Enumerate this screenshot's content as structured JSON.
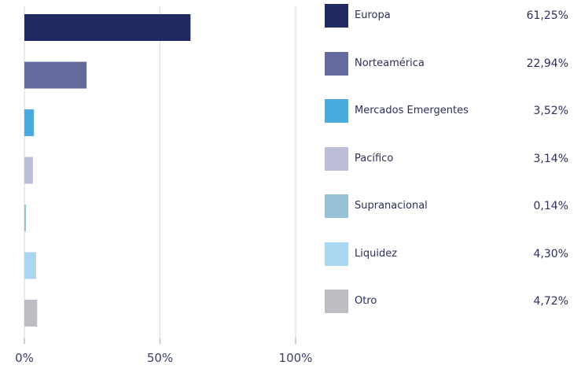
{
  "chart_data": {
    "type": "bar",
    "orientation": "horizontal",
    "categories": [
      "Europa",
      "Norteamérica",
      "Mercados Emergentes",
      "Pacífico",
      "Supranacional",
      "Liquidez",
      "Otro"
    ],
    "values": [
      61.25,
      22.94,
      3.52,
      3.14,
      0.14,
      4.3,
      4.72
    ],
    "value_labels": [
      "61,25%",
      "22,94%",
      "3,52%",
      "3,14%",
      "0,14%",
      "4,30%",
      "4,72%"
    ],
    "colors": [
      "#1f2a63",
      "#656a9c",
      "#4aabdf",
      "#bcbdd6",
      "#98c1d5",
      "#a9d6f0",
      "#bcbec3"
    ],
    "xlim": [
      0,
      100
    ],
    "xticks": [
      0,
      50,
      100
    ],
    "xtick_labels": [
      "0%",
      "50%",
      "100%"
    ],
    "grid": "vertical",
    "legend": "right"
  }
}
